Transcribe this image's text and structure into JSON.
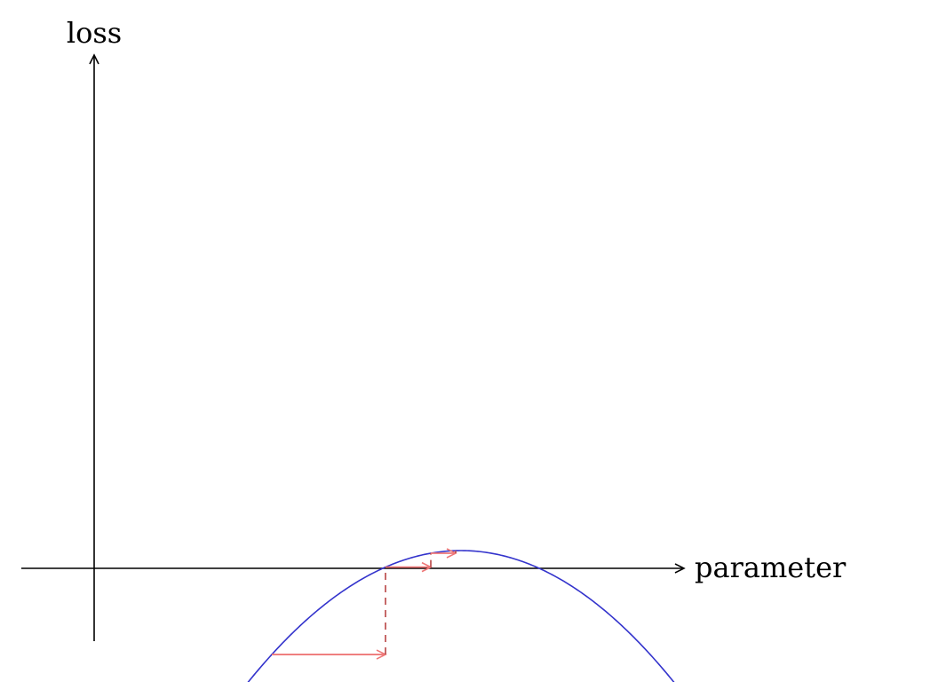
{
  "labels": {
    "y_axis": "loss",
    "x_axis": "parameter"
  },
  "colors": {
    "axis": "#000000",
    "curve": "#3333cc",
    "step_arrow": "#ee7777",
    "drop_line": "#b84444"
  },
  "descent_steps": 3
}
